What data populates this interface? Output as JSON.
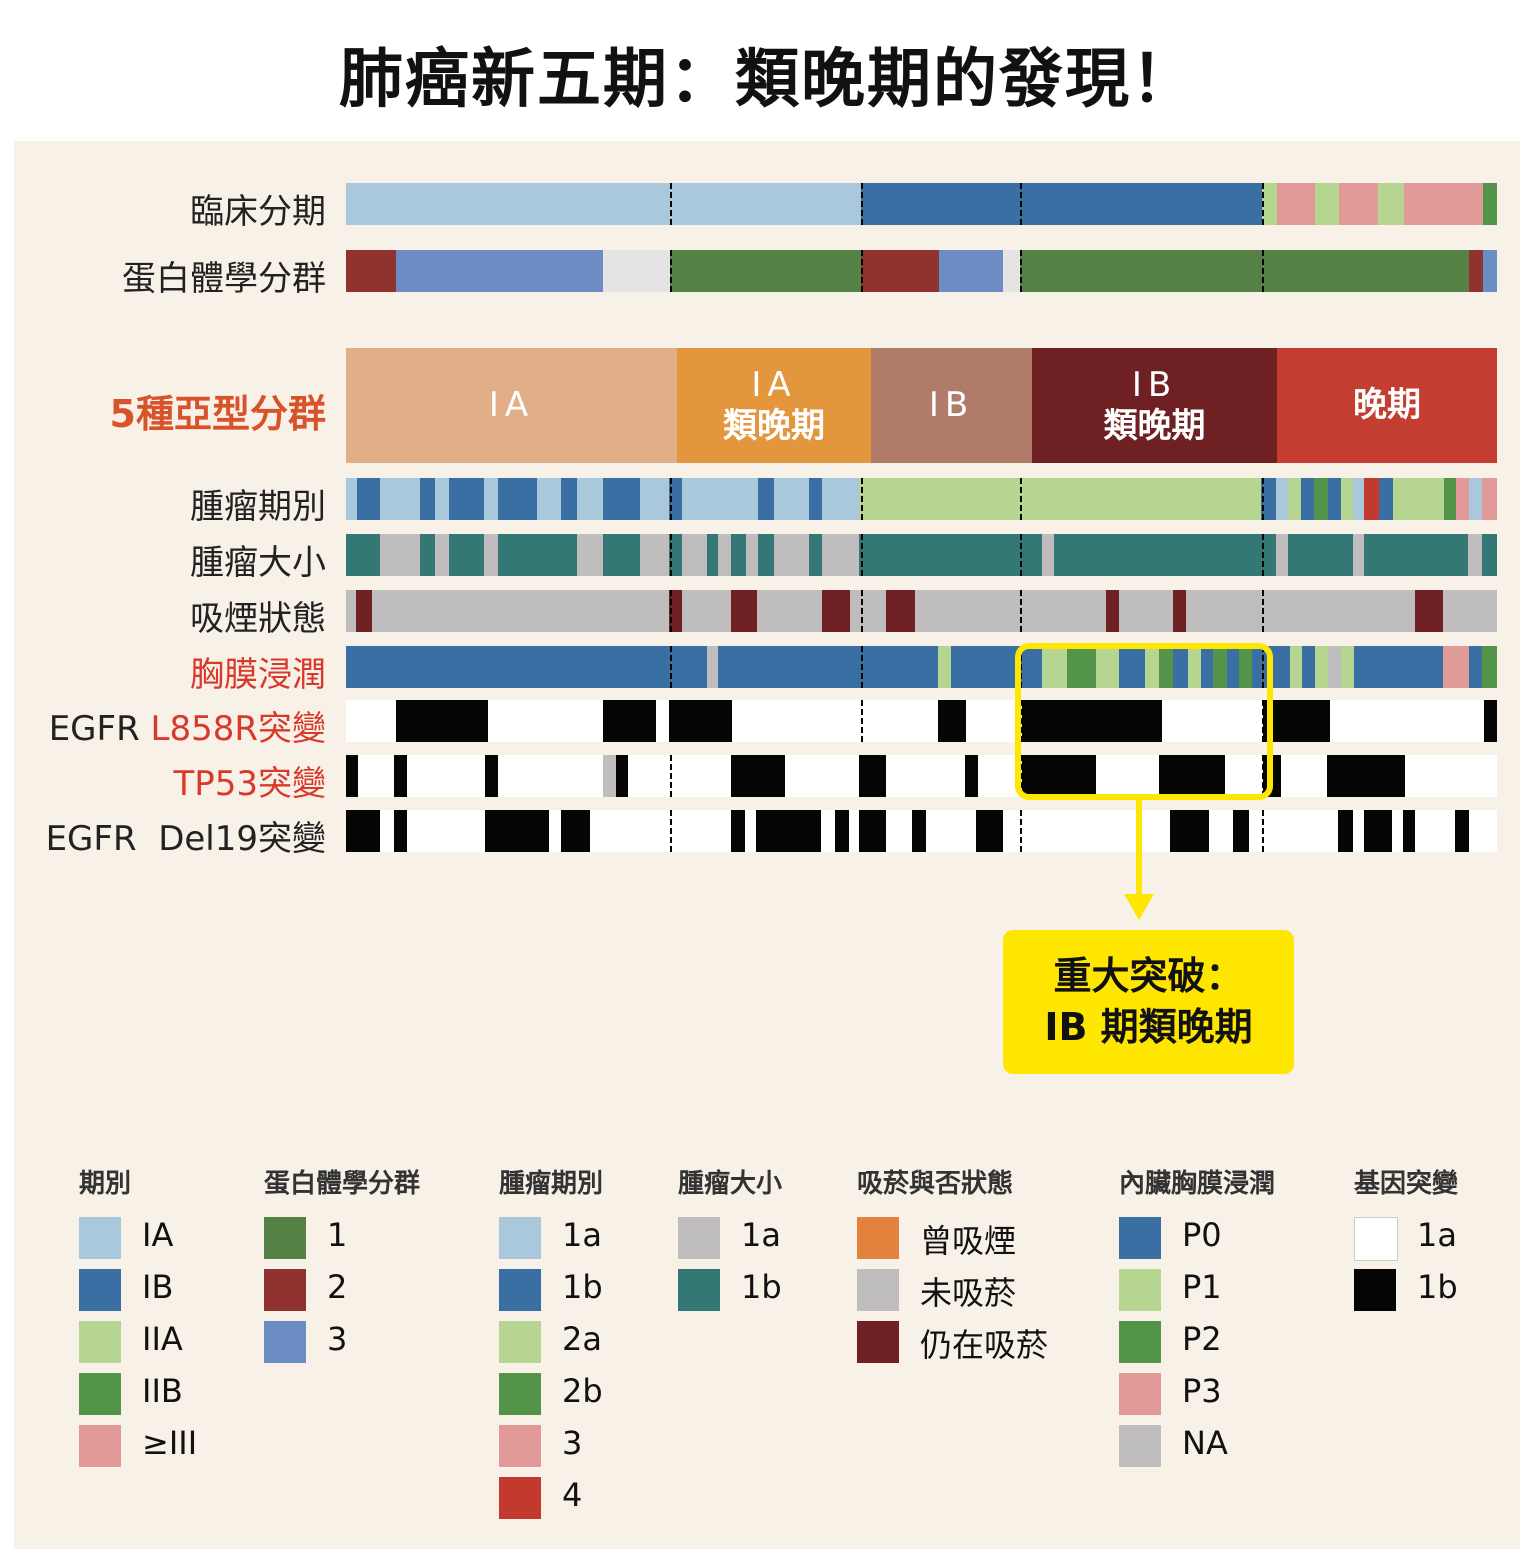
{
  "title": "肺癌新五期：類晚期的發現！",
  "palette": {
    "IA": "#a9c8db",
    "IB": "#3a6fa3",
    "IIA": "#b6d591",
    "IIB": "#53944a",
    "III": "#e29a99",
    "g1": "#558145",
    "g2": "#8f3230",
    "g3": "#6c8dc3",
    "gNA": "#e5e3e3",
    "t4": "#c4392e",
    "gray": "#bfbdbd",
    "teal": "#337875",
    "maroon": "#6e2022",
    "white": "#ffffff",
    "black": "#050505",
    "P0": "#3a6fa3",
    "P1": "#b6d591",
    "P2": "#53944a",
    "P3": "#e29a99"
  },
  "chart_data": {
    "type": "heatmap",
    "title": "肺癌新五期：類晚期的發現！",
    "x_unit": "sample position (0-1151)",
    "x_range": [
      0,
      1151
    ],
    "group_boundaries": [
      324,
      515,
      674,
      916
    ],
    "subtypes": [
      {
        "label_top": "IA",
        "label_bottom": "",
        "start": 0,
        "end": 331,
        "color": "#e2ae87"
      },
      {
        "label_top": "IA",
        "label_bottom": "類晚期",
        "start": 331,
        "end": 525,
        "color": "#e4963c"
      },
      {
        "label_top": "IB",
        "label_bottom": "",
        "start": 525,
        "end": 686,
        "color": "#b07b68"
      },
      {
        "label_top": "IB",
        "label_bottom": "類晚期",
        "start": 686,
        "end": 931,
        "color": "#6e2022"
      },
      {
        "label_top": "晚期",
        "label_bottom": "",
        "start": 931,
        "end": 1151,
        "color": "#c33d30"
      }
    ],
    "subtype_row_label": "5種亞型分群",
    "rows": [
      {
        "label": "臨床分期",
        "prefix": "",
        "red": false,
        "segments": [
          [
            0,
            515,
            "IA"
          ],
          [
            515,
            916,
            "IB"
          ],
          [
            916,
            931,
            "IIA"
          ],
          [
            931,
            969,
            "III"
          ],
          [
            969,
            993,
            "IIA"
          ],
          [
            993,
            1032,
            "III"
          ],
          [
            1032,
            1058,
            "IIA"
          ],
          [
            1058,
            1137,
            "III"
          ],
          [
            1137,
            1151,
            "IIB"
          ]
        ]
      },
      {
        "label": "蛋白體學分群",
        "prefix": "",
        "red": false,
        "segments": [
          [
            0,
            50,
            "g2"
          ],
          [
            50,
            257,
            "g3"
          ],
          [
            257,
            324,
            "gNA"
          ],
          [
            324,
            515,
            "g1"
          ],
          [
            515,
            593,
            "g2"
          ],
          [
            593,
            657,
            "g3"
          ],
          [
            657,
            674,
            "gNA"
          ],
          [
            674,
            1123,
            "g1"
          ],
          [
            1123,
            1137,
            "g2"
          ],
          [
            1137,
            1151,
            "g3"
          ]
        ]
      },
      {
        "label": "腫瘤期別",
        "prefix": "",
        "red": false,
        "segments": [
          [
            0,
            11,
            "IA"
          ],
          [
            11,
            34,
            "IB"
          ],
          [
            34,
            74,
            "IA"
          ],
          [
            74,
            89,
            "IB"
          ],
          [
            89,
            103,
            "IA"
          ],
          [
            103,
            138,
            "IB"
          ],
          [
            138,
            152,
            "IA"
          ],
          [
            152,
            191,
            "IB"
          ],
          [
            191,
            215,
            "IA"
          ],
          [
            215,
            231,
            "IB"
          ],
          [
            231,
            257,
            "IA"
          ],
          [
            257,
            294,
            "IB"
          ],
          [
            294,
            323,
            "IA"
          ],
          [
            323,
            336,
            "IB"
          ],
          [
            336,
            412,
            "IA"
          ],
          [
            412,
            428,
            "IB"
          ],
          [
            428,
            463,
            "IA"
          ],
          [
            463,
            476,
            "IB"
          ],
          [
            476,
            513,
            "IA"
          ],
          [
            513,
            915,
            "IIA"
          ],
          [
            915,
            930,
            "IB"
          ],
          [
            930,
            942,
            "IA"
          ],
          [
            942,
            955,
            "IIA"
          ],
          [
            955,
            968,
            "IB"
          ],
          [
            968,
            982,
            "IIB"
          ],
          [
            982,
            995,
            "IB"
          ],
          [
            995,
            1007,
            "IIA"
          ],
          [
            1007,
            1018,
            "IA"
          ],
          [
            1018,
            1033,
            "t4"
          ],
          [
            1033,
            1047,
            "IB"
          ],
          [
            1047,
            1098,
            "IIA"
          ],
          [
            1098,
            1110,
            "IIB"
          ],
          [
            1110,
            1123,
            "III"
          ],
          [
            1123,
            1136,
            "IA"
          ],
          [
            1136,
            1151,
            "III"
          ]
        ]
      },
      {
        "label": "腫瘤大小",
        "prefix": "",
        "red": false,
        "segments": [
          [
            0,
            34,
            "teal"
          ],
          [
            34,
            74,
            "gray"
          ],
          [
            74,
            89,
            "teal"
          ],
          [
            89,
            103,
            "gray"
          ],
          [
            103,
            138,
            "teal"
          ],
          [
            138,
            152,
            "gray"
          ],
          [
            152,
            231,
            "teal"
          ],
          [
            231,
            257,
            "gray"
          ],
          [
            257,
            294,
            "teal"
          ],
          [
            294,
            323,
            "gray"
          ],
          [
            323,
            336,
            "teal"
          ],
          [
            336,
            361,
            "gray"
          ],
          [
            361,
            372,
            "teal"
          ],
          [
            372,
            385,
            "gray"
          ],
          [
            385,
            400,
            "teal"
          ],
          [
            400,
            412,
            "gray"
          ],
          [
            412,
            428,
            "teal"
          ],
          [
            428,
            463,
            "gray"
          ],
          [
            463,
            476,
            "teal"
          ],
          [
            476,
            513,
            "gray"
          ],
          [
            513,
            696,
            "teal"
          ],
          [
            696,
            708,
            "gray"
          ],
          [
            708,
            930,
            "teal"
          ],
          [
            930,
            942,
            "gray"
          ],
          [
            942,
            1007,
            "teal"
          ],
          [
            1007,
            1018,
            "gray"
          ],
          [
            1018,
            1122,
            "teal"
          ],
          [
            1122,
            1136,
            "gray"
          ],
          [
            1136,
            1151,
            "teal"
          ]
        ]
      },
      {
        "label": "吸煙狀態",
        "prefix": "",
        "red": false,
        "segments": [
          [
            0,
            10,
            "gray"
          ],
          [
            10,
            26,
            "maroon"
          ],
          [
            26,
            323,
            "gray"
          ],
          [
            323,
            336,
            "maroon"
          ],
          [
            336,
            385,
            "gray"
          ],
          [
            385,
            411,
            "maroon"
          ],
          [
            411,
            476,
            "gray"
          ],
          [
            476,
            504,
            "maroon"
          ],
          [
            504,
            540,
            "gray"
          ],
          [
            540,
            569,
            "maroon"
          ],
          [
            569,
            760,
            "gray"
          ],
          [
            760,
            773,
            "maroon"
          ],
          [
            773,
            827,
            "gray"
          ],
          [
            827,
            840,
            "maroon"
          ],
          [
            840,
            1069,
            "gray"
          ],
          [
            1069,
            1097,
            "maroon"
          ],
          [
            1097,
            1151,
            "gray"
          ]
        ]
      },
      {
        "label": "胸膜浸潤",
        "prefix": "",
        "red": true,
        "segments": [
          [
            0,
            361,
            "P0"
          ],
          [
            361,
            372,
            "gray"
          ],
          [
            372,
            592,
            "P0"
          ],
          [
            592,
            605,
            "P1"
          ],
          [
            605,
            696,
            "P0"
          ],
          [
            696,
            721,
            "P1"
          ],
          [
            721,
            750,
            "P2"
          ],
          [
            750,
            773,
            "P1"
          ],
          [
            773,
            799,
            "P0"
          ],
          [
            799,
            813,
            "P1"
          ],
          [
            813,
            827,
            "P2"
          ],
          [
            827,
            842,
            "P0"
          ],
          [
            842,
            855,
            "P1"
          ],
          [
            855,
            867,
            "P0"
          ],
          [
            867,
            881,
            "P2"
          ],
          [
            881,
            893,
            "P0"
          ],
          [
            893,
            906,
            "P2"
          ],
          [
            906,
            944,
            "P0"
          ],
          [
            944,
            956,
            "P1"
          ],
          [
            956,
            969,
            "P0"
          ],
          [
            969,
            982,
            "P1"
          ],
          [
            982,
            995,
            "gray"
          ],
          [
            995,
            1008,
            "P1"
          ],
          [
            1008,
            1097,
            "P0"
          ],
          [
            1097,
            1123,
            "P3"
          ],
          [
            1123,
            1136,
            "P0"
          ],
          [
            1136,
            1151,
            "P2"
          ]
        ]
      },
      {
        "label": "L858R突變",
        "prefix": "EGFR ",
        "red": true,
        "segments": [
          [
            0,
            1151,
            "white"
          ],
          [
            50,
            142,
            "black"
          ],
          [
            257,
            310,
            "black"
          ],
          [
            323,
            386,
            "black"
          ],
          [
            592,
            620,
            "black"
          ],
          [
            676,
            816,
            "black"
          ],
          [
            917,
            984,
            "black"
          ],
          [
            1138,
            1151,
            "black"
          ]
        ]
      },
      {
        "label": "TP53突變",
        "prefix": "",
        "red": true,
        "segments": [
          [
            0,
            1151,
            "white"
          ],
          [
            0,
            12,
            "black"
          ],
          [
            48,
            61,
            "black"
          ],
          [
            139,
            152,
            "black"
          ],
          [
            257,
            270,
            "gray"
          ],
          [
            270,
            282,
            "black"
          ],
          [
            385,
            439,
            "black"
          ],
          [
            513,
            540,
            "black"
          ],
          [
            619,
            632,
            "black"
          ],
          [
            676,
            750,
            "black"
          ],
          [
            813,
            879,
            "black"
          ],
          [
            917,
            935,
            "black"
          ],
          [
            981,
            1059,
            "black"
          ]
        ]
      },
      {
        "label": "Del19突變",
        "prefix": "EGFR  ",
        "red": false,
        "segments": [
          [
            0,
            1151,
            "white"
          ],
          [
            0,
            34,
            "black"
          ],
          [
            48,
            61,
            "black"
          ],
          [
            139,
            203,
            "black"
          ],
          [
            215,
            244,
            "black"
          ],
          [
            385,
            399,
            "black"
          ],
          [
            410,
            475,
            "black"
          ],
          [
            489,
            503,
            "black"
          ],
          [
            513,
            540,
            "black"
          ],
          [
            566,
            580,
            "black"
          ],
          [
            630,
            657,
            "black"
          ],
          [
            824,
            863,
            "black"
          ],
          [
            887,
            903,
            "black"
          ],
          [
            992,
            1007,
            "black"
          ],
          [
            1018,
            1046,
            "black"
          ],
          [
            1057,
            1069,
            "black"
          ],
          [
            1109,
            1123,
            "black"
          ]
        ]
      }
    ],
    "annotation": {
      "line1": "重大突破：",
      "line2": "IB 期類晚期"
    },
    "legend": [
      {
        "title": "期別",
        "items": [
          {
            "label": "IA",
            "color": "#a9c8db"
          },
          {
            "label": "IB",
            "color": "#3a6fa3"
          },
          {
            "label": "IIA",
            "color": "#b6d591"
          },
          {
            "label": "IIB",
            "color": "#53944a"
          },
          {
            "label": "≥III",
            "color": "#e29a99"
          }
        ]
      },
      {
        "title": "蛋白體學分群",
        "items": [
          {
            "label": "1",
            "color": "#558145"
          },
          {
            "label": "2",
            "color": "#8f3230"
          },
          {
            "label": "3",
            "color": "#6c8dc3"
          }
        ]
      },
      {
        "title": "腫瘤期別",
        "items": [
          {
            "label": "1a",
            "color": "#a9c8db"
          },
          {
            "label": "1b",
            "color": "#3a6fa3"
          },
          {
            "label": "2a",
            "color": "#b6d591"
          },
          {
            "label": "2b",
            "color": "#53944a"
          },
          {
            "label": "3",
            "color": "#e29a99"
          },
          {
            "label": "4",
            "color": "#c4392e"
          }
        ]
      },
      {
        "title": "腫瘤大小",
        "items": [
          {
            "label": "1a",
            "color": "#bfbdbd"
          },
          {
            "label": "1b",
            "color": "#337875"
          }
        ]
      },
      {
        "title": "吸菸與否狀態",
        "items": [
          {
            "label": "曾吸煙",
            "color": "#e2823c"
          },
          {
            "label": "未吸菸",
            "color": "#bfbdbd"
          },
          {
            "label": "仍在吸菸",
            "color": "#6e2022"
          }
        ]
      },
      {
        "title": "內臟胸膜浸潤",
        "items": [
          {
            "label": "P0",
            "color": "#3a6fa3"
          },
          {
            "label": "P1",
            "color": "#b6d591"
          },
          {
            "label": "P2",
            "color": "#53944a"
          },
          {
            "label": "P3",
            "color": "#e29a99"
          },
          {
            "label": "NA",
            "color": "#bfbdbd"
          }
        ]
      },
      {
        "title": "基因突變",
        "items": [
          {
            "label": "1a",
            "color": "#ffffff"
          },
          {
            "label": "1b",
            "color": "#050505"
          }
        ]
      }
    ]
  }
}
